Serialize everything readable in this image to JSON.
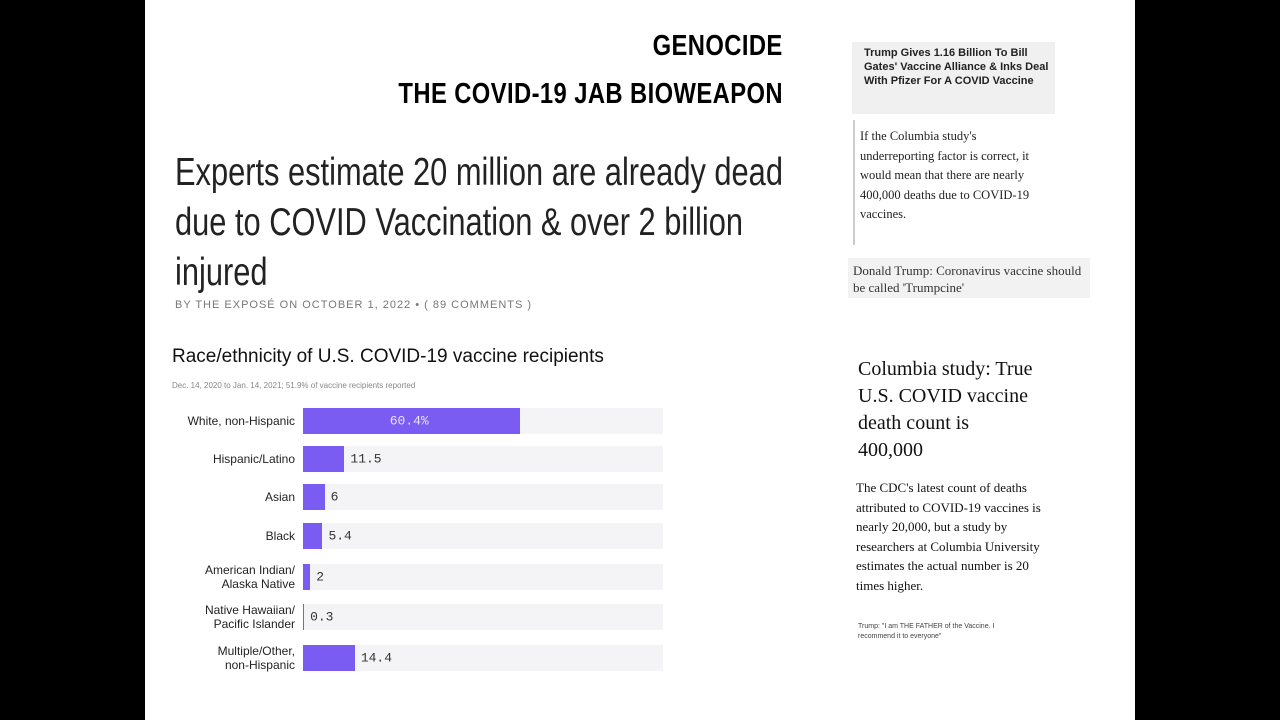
{
  "headline": {
    "line1": "GENOCIDE",
    "line2": "THE COVID-19 JAB BIOWEAPON"
  },
  "article": {
    "title": "Experts estimate 20 million are already dead due to COVID Vaccination & over 2 billion injured",
    "byline": "BY THE EXPOSÉ ON OCTOBER 1, 2022 • ( 89 COMMENTS )"
  },
  "chart_data": {
    "type": "bar",
    "orientation": "horizontal",
    "title": "Race/ethnicity of U.S. COVID-19 vaccine recipients",
    "subtitle": "Dec. 14, 2020 to Jan. 14, 2021; 51.9% of vaccine recipients reported",
    "categories": [
      "White, non-Hispanic",
      "Hispanic/Latino",
      "Asian",
      "Black",
      "American Indian/\nAlaska Native",
      "Native Hawaiian/\nPacific Islander",
      "Multiple/Other,\nnon-Hispanic"
    ],
    "values": [
      60.4,
      11.5,
      6,
      5.4,
      2,
      0.3,
      14.4
    ],
    "value_labels": [
      "60.4%",
      "11.5",
      "6",
      "5.4",
      "2",
      "0.3",
      "14.4"
    ],
    "color": "#7a5cf2",
    "xlim": [
      0,
      100
    ]
  },
  "sidebar": {
    "news_headline": "Trump Gives 1.16 Billion To Bill Gates' Vaccine Alliance & Inks Deal With Pfizer For A COVID Vaccine",
    "quote1": "If the Columbia study's underreporting factor is correct, it would mean that there are nearly 400,000 deaths due to COVID-19 vaccines.",
    "caption1": "Donald Trump: Coronavirus vaccine should be called 'Trumpcine'",
    "heading": "Columbia study: True U.S. COVID vaccine death count is 400,000",
    "body": "The CDC's latest count of deaths attributed to COVID-19 vaccines is nearly 20,000, but a study by researchers at Columbia University estimates the actual number is 20 times higher.",
    "caption2": "Trump: \"I am THE FATHER of the Vaccine. I recommend it to everyone\""
  }
}
